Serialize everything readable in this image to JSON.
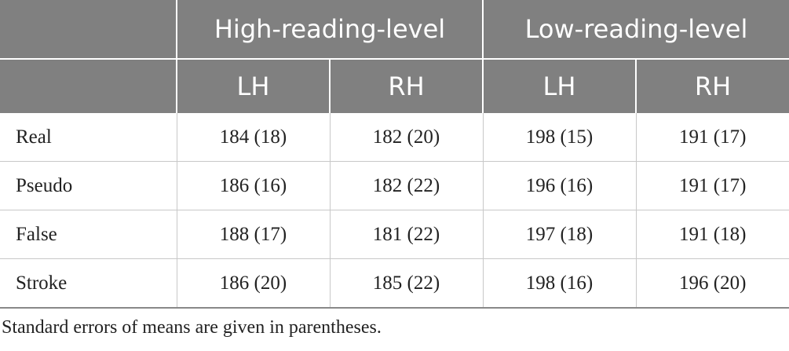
{
  "header": {
    "groups": [
      "High-reading-level",
      "Low-reading-level"
    ],
    "subheaders": [
      "LH",
      "RH",
      "LH",
      "RH"
    ]
  },
  "table": {
    "rows": [
      [
        "Real",
        "184 (18)",
        "182 (20)",
        "198 (15)",
        "191 (17)"
      ],
      [
        "Pseudo",
        "186 (16)",
        "182 (22)",
        "196 (16)",
        "191 (17)"
      ],
      [
        "False",
        "188 (17)",
        "181 (22)",
        "197 (18)",
        "191 (18)"
      ],
      [
        "Stroke",
        "186 (20)",
        "185 (22)",
        "198 (16)",
        "196 (20)"
      ]
    ]
  },
  "footnote": "Standard errors of means are given in parentheses."
}
